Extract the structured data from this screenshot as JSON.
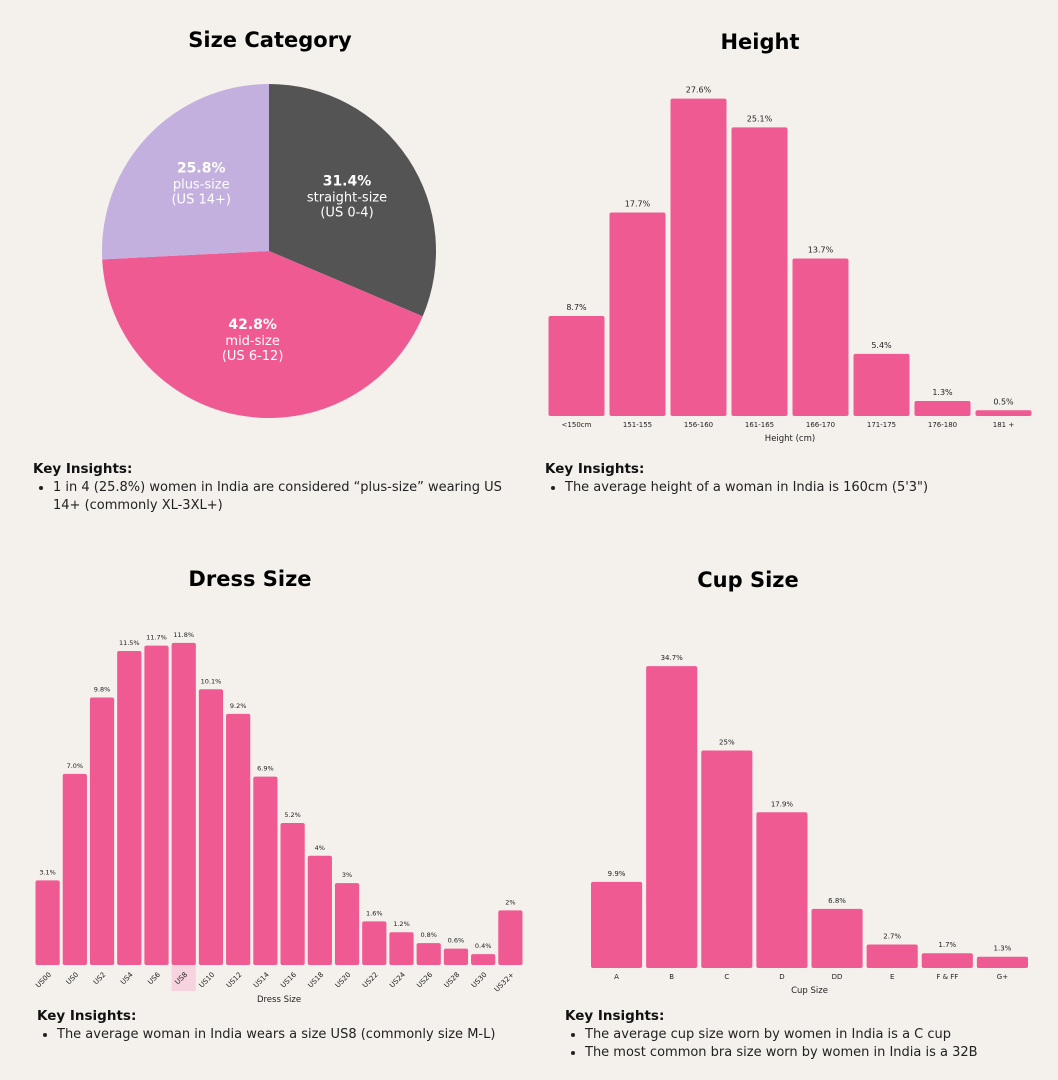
{
  "colors": {
    "bar": "#f05a92",
    "pie_dark": "#545454",
    "pie_pink": "#f05a92",
    "pie_lavender": "#c3b0df",
    "highlight": "#f7d3df"
  },
  "panels": {
    "size_category": {
      "title": "Size Category",
      "insights_title": "Key Insights:",
      "insights": [
        "1 in 4 (25.8%) women in India are considered “plus-size” wearing US 14+ (commonly XL-3XL+)"
      ]
    },
    "height": {
      "title": "Height",
      "insights_title": "Key Insights:",
      "insights": [
        "The average height of a woman in India is 160cm (5'3\")"
      ]
    },
    "dress_size": {
      "title": "Dress Size",
      "insights_title": "Key Insights:",
      "insights": [
        "The average woman in India wears a size US8 (commonly size M-L)"
      ]
    },
    "cup_size": {
      "title": "Cup Size",
      "insights_title": "Key Insights:",
      "insights": [
        "The average cup size worn by women in India is a C cup",
        "The most common bra size worn by women in India is a 32B"
      ]
    }
  },
  "chart_data": [
    {
      "id": "size_category",
      "type": "pie",
      "title": "Size Category",
      "slices": [
        {
          "value": 31.4,
          "pct_label": "31.4%",
          "label": "straight-size",
          "sub": "(US 0-4)",
          "color": "#545454"
        },
        {
          "value": 42.8,
          "pct_label": "42.8%",
          "label": "mid-size",
          "sub": "(US 6-12)",
          "color": "#f05a92"
        },
        {
          "value": 25.8,
          "pct_label": "25.8%",
          "label": "plus-size",
          "sub": "(US 14+)",
          "color": "#c3b0df"
        }
      ]
    },
    {
      "id": "height",
      "type": "bar",
      "title": "Height",
      "xlabel": "Height (cm)",
      "categories": [
        "<150cm",
        "151-155",
        "156-160",
        "161-165",
        "166-170",
        "171-175",
        "176-180",
        "181 +"
      ],
      "values": [
        8.7,
        17.7,
        27.6,
        25.1,
        13.7,
        5.4,
        1.3,
        0.5
      ],
      "labels": [
        "8.7%",
        "17.7%",
        "27.6%",
        "25.1%",
        "13.7%",
        "5.4%",
        "1.3%",
        "0.5%"
      ]
    },
    {
      "id": "dress_size",
      "type": "bar",
      "title": "Dress Size",
      "xlabel": "Dress Size",
      "highlight": "US8",
      "categories": [
        "US00",
        "US0",
        "US2",
        "US4",
        "US6",
        "US8",
        "US10",
        "US12",
        "US14",
        "US16",
        "US18",
        "US20",
        "US22",
        "US24",
        "US26",
        "US28",
        "US30",
        "US32+"
      ],
      "values": [
        3.1,
        7.0,
        9.8,
        11.5,
        11.7,
        11.8,
        10.1,
        9.2,
        6.9,
        5.2,
        4,
        3,
        1.6,
        1.2,
        0.8,
        0.6,
        0.4,
        2
      ],
      "labels": [
        "3.1%",
        "7.0%",
        "9.8%",
        "11.5%",
        "11.7%",
        "11.8%",
        "10.1%",
        "9.2%",
        "6.9%",
        "5.2%",
        "4%",
        "3%",
        "1.6%",
        "1.2%",
        "0.8%",
        "0.6%",
        "0.4%",
        "2%"
      ]
    },
    {
      "id": "cup_size",
      "type": "bar",
      "title": "Cup Size",
      "xlabel": "Cup Size",
      "categories": [
        "A",
        "B",
        "C",
        "D",
        "DD",
        "E",
        "F & FF",
        "G+"
      ],
      "values": [
        9.9,
        34.7,
        25,
        17.9,
        6.8,
        2.7,
        1.7,
        1.3
      ],
      "labels": [
        "9.9%",
        "34.7%",
        "25%",
        "17.9%",
        "6.8%",
        "2.7%",
        "1.7%",
        "1.3%"
      ]
    }
  ]
}
